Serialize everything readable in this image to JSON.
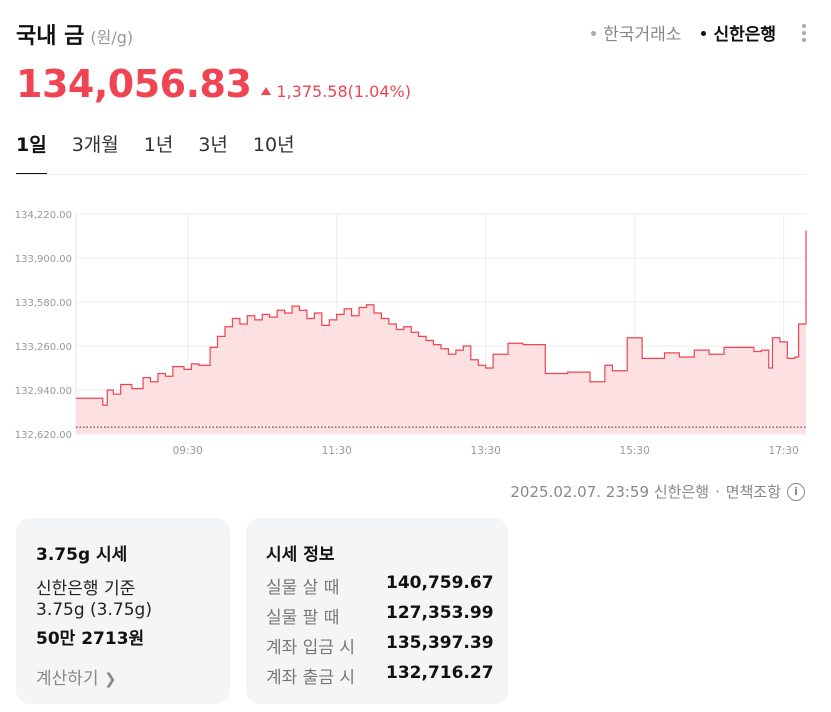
{
  "header": {
    "title": "국내 금",
    "unit": "(원/g)",
    "sources": [
      "한국거래소",
      "신한은행"
    ],
    "active_source": "신한은행"
  },
  "price": {
    "current": "134,056.83",
    "change": "1,375.58",
    "change_pct": "(1.04%)",
    "direction": "up",
    "color": "#f04452"
  },
  "tabs": [
    "1일",
    "3개월",
    "1년",
    "3년",
    "10년"
  ],
  "active_tab": "1일",
  "chart_data": {
    "type": "area",
    "y_ticks": [
      "134,220.00",
      "133,900.00",
      "133,580.00",
      "133,260.00",
      "132,940.00",
      "132,620.00"
    ],
    "x_ticks": [
      "09:30",
      "11:30",
      "13:30",
      "15:30",
      "17:30"
    ],
    "ylim": [
      132620,
      134220
    ],
    "xlim": [
      8.0,
      17.8
    ],
    "baseline": 132670,
    "grid": true,
    "series": [
      {
        "points": [
          [
            8.0,
            132880
          ],
          [
            8.33,
            132880
          ],
          [
            8.36,
            132830
          ],
          [
            8.42,
            132940
          ],
          [
            8.5,
            132910
          ],
          [
            8.6,
            132980
          ],
          [
            8.75,
            132950
          ],
          [
            8.9,
            133030
          ],
          [
            9.0,
            133000
          ],
          [
            9.1,
            133060
          ],
          [
            9.2,
            133040
          ],
          [
            9.3,
            133110
          ],
          [
            9.45,
            133090
          ],
          [
            9.55,
            133130
          ],
          [
            9.65,
            133120
          ],
          [
            9.8,
            133250
          ],
          [
            9.9,
            133330
          ],
          [
            10.0,
            133400
          ],
          [
            10.1,
            133460
          ],
          [
            10.2,
            133420
          ],
          [
            10.3,
            133480
          ],
          [
            10.4,
            133450
          ],
          [
            10.5,
            133490
          ],
          [
            10.6,
            133470
          ],
          [
            10.7,
            133520
          ],
          [
            10.8,
            133500
          ],
          [
            10.9,
            133550
          ],
          [
            11.0,
            133520
          ],
          [
            11.1,
            133460
          ],
          [
            11.2,
            133500
          ],
          [
            11.3,
            133410
          ],
          [
            11.4,
            133450
          ],
          [
            11.5,
            133490
          ],
          [
            11.6,
            133530
          ],
          [
            11.7,
            133480
          ],
          [
            11.8,
            133540
          ],
          [
            11.9,
            133560
          ],
          [
            12.0,
            133500
          ],
          [
            12.1,
            133460
          ],
          [
            12.2,
            133420
          ],
          [
            12.3,
            133380
          ],
          [
            12.4,
            133400
          ],
          [
            12.5,
            133360
          ],
          [
            12.6,
            133330
          ],
          [
            12.7,
            133300
          ],
          [
            12.8,
            133270
          ],
          [
            12.9,
            133240
          ],
          [
            13.0,
            133200
          ],
          [
            13.1,
            133230
          ],
          [
            13.2,
            133260
          ],
          [
            13.3,
            133160
          ],
          [
            13.4,
            133120
          ],
          [
            13.5,
            133100
          ],
          [
            13.6,
            133200
          ],
          [
            13.8,
            133280
          ],
          [
            14.0,
            133270
          ],
          [
            14.3,
            133060
          ],
          [
            14.6,
            133070
          ],
          [
            14.9,
            133000
          ],
          [
            15.1,
            133120
          ],
          [
            15.2,
            133080
          ],
          [
            15.4,
            133320
          ],
          [
            15.6,
            133170
          ],
          [
            15.9,
            133210
          ],
          [
            16.1,
            133180
          ],
          [
            16.3,
            133230
          ],
          [
            16.5,
            133200
          ],
          [
            16.7,
            133250
          ],
          [
            16.9,
            133250
          ],
          [
            17.1,
            133220
          ],
          [
            17.2,
            133230
          ],
          [
            17.3,
            133100
          ],
          [
            17.35,
            133320
          ],
          [
            17.45,
            133290
          ],
          [
            17.55,
            133170
          ],
          [
            17.65,
            133180
          ],
          [
            17.7,
            133420
          ],
          [
            17.78,
            133420
          ],
          [
            17.8,
            134100
          ]
        ]
      }
    ]
  },
  "footnote": {
    "timestamp": "2025.02.07. 23:59",
    "source": "신한은행",
    "disclaimer": "면책조항",
    "separator": "·"
  },
  "card1": {
    "title": "3.75g 시세",
    "basis": "신한은행 기준",
    "weight": "3.75g (3.75g)",
    "amount": "50만 2713원",
    "calc_label": "계산하기"
  },
  "card2": {
    "title": "시세 정보",
    "rows": [
      {
        "label": "실물 살 때",
        "value": "140,759.67"
      },
      {
        "label": "실물 팔 때",
        "value": "127,353.99"
      },
      {
        "label": "계좌 입금 시",
        "value": "135,397.39"
      },
      {
        "label": "계좌 출금 시",
        "value": "132,716.27"
      }
    ]
  }
}
